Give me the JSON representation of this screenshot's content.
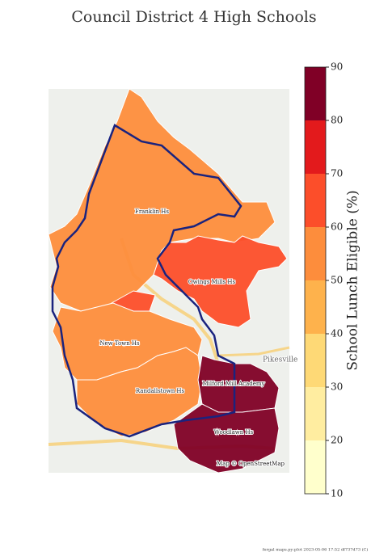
{
  "title": "Council District 4 High Schools",
  "schools": [
    {
      "name": "Franklin Hs",
      "value": 55
    },
    {
      "name": "Owings Mills Hs",
      "value": 65
    },
    {
      "name": "New Town Hs",
      "value": 55
    },
    {
      "name": "Randallstown Hs",
      "value": 55
    },
    {
      "name": "Milford Mill Academy",
      "value": 88
    },
    {
      "name": "Woodlawn Hs",
      "value": 88
    }
  ],
  "map_labels": [
    "Pikesville"
  ],
  "attribution": "Map © OpenStreetMap",
  "colorbar": {
    "label": "School Lunch Eligible (%)",
    "lim": [
      10,
      90
    ],
    "ticks": [
      10,
      20,
      30,
      40,
      50,
      60,
      70,
      80,
      90
    ],
    "colors": [
      "#ffffcc",
      "#ffeda0",
      "#fed976",
      "#feb24c",
      "#fd8d3c",
      "#fc4e2a",
      "#e31a1c",
      "#bd0026"
    ],
    "top_color": "#800026"
  },
  "footer": "fergal maps.py:plot 2023-05-06 17:52 df737d73 (C)"
}
